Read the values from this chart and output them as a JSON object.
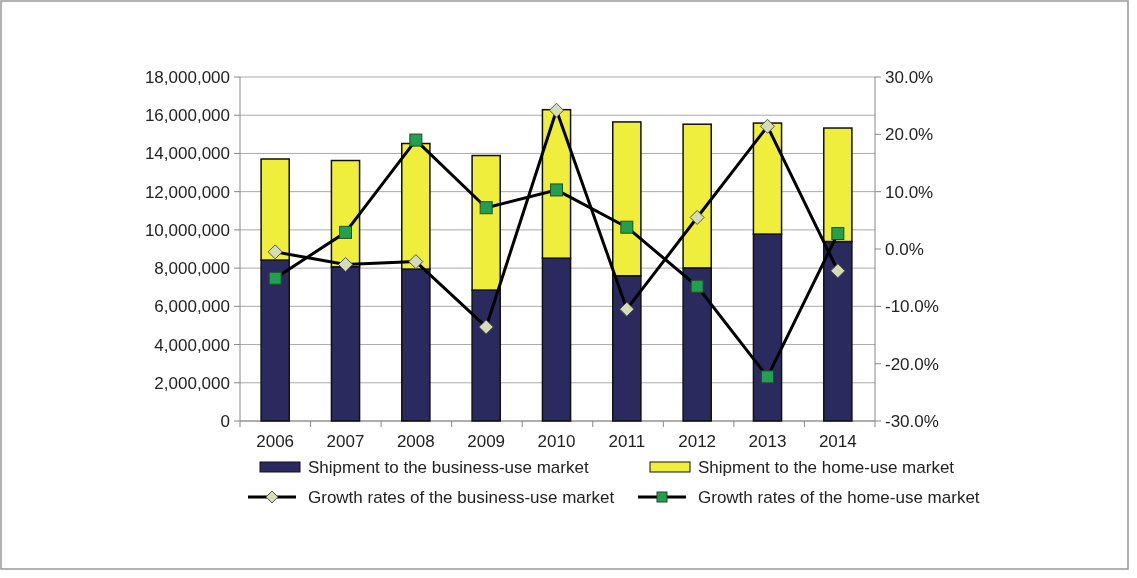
{
  "chart_data": {
    "type": "bar",
    "stacked": true,
    "categories": [
      "2006",
      "2007",
      "2008",
      "2009",
      "2010",
      "2011",
      "2012",
      "2013",
      "2014"
    ],
    "series": [
      {
        "name": "Shipment to the business-use market",
        "color": "#2b2a5e",
        "values": [
          8420000,
          8070000,
          7950000,
          6850000,
          8520000,
          7600000,
          8010000,
          9780000,
          9390000
        ]
      },
      {
        "name": "Shipment to the home-use market",
        "color": "#f0ee3c",
        "values": [
          5290000,
          5560000,
          6570000,
          7040000,
          7770000,
          8050000,
          7520000,
          5810000,
          5940000
        ]
      },
      {
        "name": "Growth rates of the business-use market",
        "type": "line",
        "axis": "y2",
        "marker": "diamond",
        "color": "#d4dcb8",
        "values": [
          -0.5,
          -2.7,
          -2.2,
          -13.6,
          24.2,
          -10.5,
          5.5,
          21.4,
          -3.8
        ]
      },
      {
        "name": "Growth rates of the home-use market",
        "type": "line",
        "axis": "y2",
        "marker": "square",
        "color": "#22a050",
        "values": [
          -5.1,
          2.9,
          19.0,
          7.2,
          10.3,
          3.8,
          -6.5,
          -22.3,
          2.7
        ]
      }
    ],
    "ylim": [
      0,
      18000000
    ],
    "yticks": [
      {
        "value": 0,
        "label": "0"
      },
      {
        "value": 2000000,
        "label": "2,000,000"
      },
      {
        "value": 4000000,
        "label": "4,000,000"
      },
      {
        "value": 6000000,
        "label": "6,000,000"
      },
      {
        "value": 8000000,
        "label": "8,000,000"
      },
      {
        "value": 10000000,
        "label": "10,000,000"
      },
      {
        "value": 12000000,
        "label": "12,000,000"
      },
      {
        "value": 14000000,
        "label": "14,000,000"
      },
      {
        "value": 16000000,
        "label": "16,000,000"
      },
      {
        "value": 18000000,
        "label": "18,000,000"
      }
    ],
    "y2lim": [
      -30,
      30
    ],
    "y2ticks": [
      {
        "value": -30,
        "label": "-30.0%"
      },
      {
        "value": -20,
        "label": "-20.0%"
      },
      {
        "value": -10,
        "label": "-10.0%"
      },
      {
        "value": 0,
        "label": "0.0%"
      },
      {
        "value": 10,
        "label": "10.0%"
      },
      {
        "value": 20,
        "label": "20.0%"
      },
      {
        "value": 30,
        "label": "30.0%"
      }
    ],
    "grid": "y",
    "legend": "bottom",
    "line_style": "solid"
  }
}
